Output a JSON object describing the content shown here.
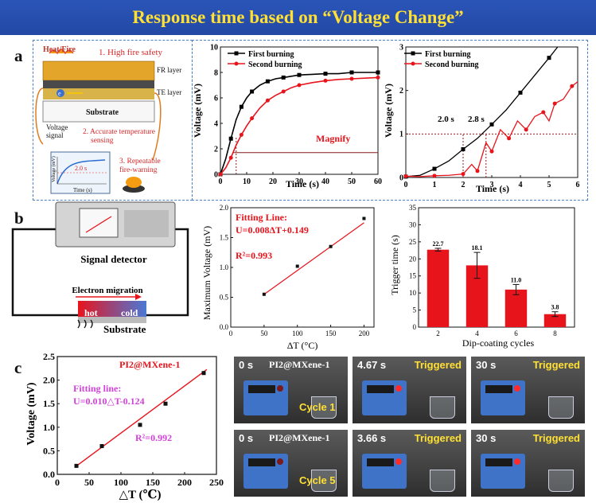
{
  "title": "Response time based on “Voltage Change”",
  "panels": {
    "a": "a",
    "b": "b",
    "c": "c"
  },
  "schematic_a": {
    "heat": "Heat/Fire",
    "item1": "1. High fire safety",
    "fr_layer": "FR layer",
    "te_layer": "TE layer",
    "substrate": "Substrate",
    "voltage": "Voltage",
    "signal": "signal",
    "item2a": "2. Accurate temperature",
    "item2b": "sensing",
    "item3a": "3. Repeatable",
    "item3b": "fire-warning",
    "inset_time": "2.0 s",
    "inset_ylabel": "Voltage (mV)",
    "inset_xlabel": "Time (s)",
    "electron": "e"
  },
  "schematic_b": {
    "detector": "Signal detector",
    "migration": "Electron migration",
    "hot": "hot",
    "cold": "cold",
    "substrate": "Substrate"
  },
  "photos": [
    {
      "time": "0 s",
      "label": "PI2@MXene-1",
      "status": "",
      "cycle": ""
    },
    {
      "time": "4.67 s",
      "label": "",
      "status": "Triggered",
      "cycle": ""
    },
    {
      "time": "30 s",
      "label": "",
      "status": "Triggered",
      "cycle": ""
    },
    {
      "time": "0 s",
      "label": "PI2@MXene-1",
      "status": "",
      "cycle": ""
    },
    {
      "time": "3.66 s",
      "label": "",
      "status": "Triggered",
      "cycle": ""
    },
    {
      "time": "30 s",
      "label": "",
      "status": "Triggered",
      "cycle": ""
    }
  ],
  "photo_cycles": [
    "Cycle 1",
    "Cycle 5"
  ],
  "chart_data": [
    {
      "type": "line",
      "xlabel": "Time (s)",
      "ylabel": "Voltage (mV)",
      "xlim": [
        0,
        60
      ],
      "ylim": [
        0,
        10
      ],
      "xticks": [
        0,
        10,
        20,
        30,
        40,
        50,
        60
      ],
      "yticks": [
        0,
        2,
        4,
        6,
        8,
        10
      ],
      "series": [
        {
          "name": "First burning",
          "color": "#000000",
          "marker": "square",
          "x": [
            0,
            2,
            4,
            6,
            8,
            10,
            12,
            15,
            18,
            21,
            24,
            27,
            30,
            35,
            40,
            45,
            50,
            55,
            60
          ],
          "y": [
            0,
            1.2,
            2.8,
            4.3,
            5.3,
            6.0,
            6.5,
            7.0,
            7.3,
            7.5,
            7.6,
            7.7,
            7.8,
            7.85,
            7.9,
            7.9,
            8.0,
            8.0,
            8.0
          ]
        },
        {
          "name": "Second burning",
          "color": "#e8141c",
          "marker": "circle",
          "x": [
            0,
            2,
            4,
            6,
            8,
            10,
            12,
            15,
            18,
            21,
            24,
            27,
            30,
            35,
            40,
            45,
            50,
            55,
            60
          ],
          "y": [
            0,
            0.5,
            1.3,
            2.3,
            3.1,
            3.8,
            4.4,
            5.2,
            5.8,
            6.2,
            6.5,
            6.8,
            7.0,
            7.2,
            7.35,
            7.45,
            7.5,
            7.55,
            7.6
          ]
        }
      ],
      "annotation": "Magnify",
      "hline": 1.7
    },
    {
      "type": "line",
      "xlabel": "Time (s)",
      "ylabel": "Voltage (mV)",
      "xlim": [
        0,
        6
      ],
      "ylim": [
        0,
        3
      ],
      "xticks": [
        0,
        1,
        2,
        3,
        4,
        5,
        6
      ],
      "yticks": [
        0,
        1,
        2,
        3
      ],
      "series": [
        {
          "name": "First burning",
          "color": "#000000",
          "marker": "square",
          "x": [
            0,
            0.5,
            1,
            1.5,
            2,
            2.5,
            3,
            3.5,
            4,
            4.5,
            5,
            5.3
          ],
          "y": [
            0.02,
            0.05,
            0.2,
            0.38,
            0.65,
            0.9,
            1.22,
            1.55,
            1.95,
            2.35,
            2.75,
            3.0
          ]
        },
        {
          "name": "Second burning",
          "color": "#e8141c",
          "marker": "circle",
          "x": [
            0,
            0.5,
            1,
            1.5,
            2,
            2.3,
            2.5,
            2.8,
            3,
            3.3,
            3.6,
            3.9,
            4.2,
            4.5,
            4.8,
            5,
            5.2,
            5.5,
            5.8,
            6
          ],
          "y": [
            0.03,
            0.02,
            0.04,
            0.05,
            0.08,
            0.3,
            0.15,
            0.8,
            0.6,
            1.1,
            0.9,
            1.3,
            1.1,
            1.4,
            1.5,
            1.3,
            1.7,
            1.8,
            2.1,
            2.2
          ]
        }
      ],
      "annotations": [
        "2.0 s",
        "2.8 s"
      ],
      "hline": 1
    },
    {
      "type": "scatter",
      "xlabel": "ΔT (°C)",
      "ylabel": "Maximum Voltage (mV)",
      "xlim": [
        0,
        215
      ],
      "ylim": [
        0,
        2.0
      ],
      "xticks": [
        0,
        50,
        100,
        150,
        200
      ],
      "yticks": [
        0.0,
        0.5,
        1.0,
        1.5,
        2.0
      ],
      "x": [
        50,
        100,
        150,
        200
      ],
      "y": [
        0.55,
        1.02,
        1.35,
        1.82
      ],
      "fit_label": "Fitting Line:",
      "fit_eq": "U=0.008ΔT+0.149",
      "r2": "R²=0.993",
      "fit": {
        "slope": 0.008,
        "intercept": 0.149
      }
    },
    {
      "type": "bar",
      "xlabel": "Dip-coating cycles",
      "ylabel": "Trigger time (s)",
      "ylim": [
        0,
        35
      ],
      "yticks": [
        0,
        5,
        10,
        15,
        20,
        25,
        30,
        35
      ],
      "categories": [
        "2",
        "4",
        "6",
        "8"
      ],
      "values": [
        22.7,
        18.1,
        11.0,
        3.8
      ],
      "errors": [
        0.4,
        3.8,
        1.5,
        0.7
      ],
      "value_labels": [
        "22.7",
        "18.1",
        "11.0",
        "3.8"
      ]
    },
    {
      "type": "scatter",
      "xlabel": "△T (℃)",
      "ylabel": "Voltage (mV)",
      "xlim": [
        0,
        250
      ],
      "ylim": [
        0,
        2.5
      ],
      "xticks": [
        0,
        50,
        100,
        150,
        200,
        250
      ],
      "yticks": [
        0.0,
        0.5,
        1.0,
        1.5,
        2.0,
        2.5
      ],
      "x": [
        30,
        70,
        130,
        170,
        230
      ],
      "y": [
        0.18,
        0.6,
        1.05,
        1.5,
        2.15
      ],
      "sample": "PI2@MXene-1",
      "fit_label": "Fitting line:",
      "fit_eq": "U=0.010△T-0.124",
      "r2": "R²=0.992",
      "fit": {
        "slope": 0.01,
        "intercept": -0.124
      }
    }
  ]
}
